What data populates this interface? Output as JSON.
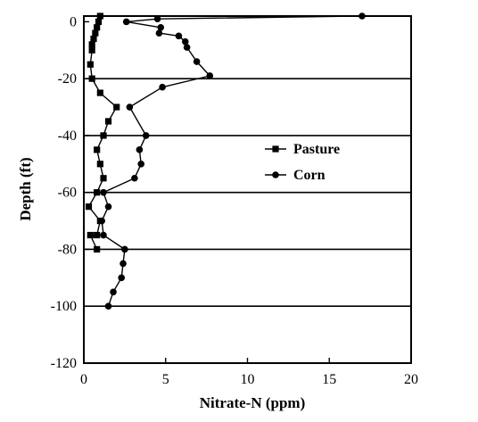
{
  "chart_data": {
    "type": "line",
    "xlabel": "Nitrate-N (ppm)",
    "ylabel": "Depth (ft)",
    "xlim": [
      0,
      20
    ],
    "ylim": [
      -120,
      2
    ],
    "x_ticks": [
      0,
      5,
      10,
      15,
      20
    ],
    "y_ticks": [
      0,
      -20,
      -40,
      -60,
      -80,
      -100,
      -120
    ],
    "grid_lines_y": [
      -20,
      -40,
      -60,
      -80,
      -100
    ],
    "legend_placement": "center-right",
    "series": [
      {
        "name": "Pasture",
        "marker": "square",
        "points": [
          [
            1.0,
            2
          ],
          [
            0.9,
            0
          ],
          [
            0.8,
            -2
          ],
          [
            0.7,
            -4
          ],
          [
            0.6,
            -6
          ],
          [
            0.5,
            -8
          ],
          [
            0.5,
            -10
          ],
          [
            0.4,
            -15
          ],
          [
            0.5,
            -20
          ],
          [
            1.0,
            -25
          ],
          [
            2.0,
            -30
          ],
          [
            1.5,
            -35
          ],
          [
            1.2,
            -40
          ],
          [
            0.8,
            -45
          ],
          [
            1.0,
            -50
          ],
          [
            1.2,
            -55
          ],
          [
            0.8,
            -60
          ],
          [
            0.3,
            -65
          ],
          [
            1.0,
            -70
          ],
          [
            0.8,
            -75
          ],
          [
            0.4,
            -75
          ],
          [
            0.8,
            -80
          ]
        ]
      },
      {
        "name": "Corn",
        "marker": "circle",
        "points": [
          [
            17.0,
            2
          ],
          [
            4.5,
            1
          ],
          [
            2.6,
            0
          ],
          [
            4.7,
            -2
          ],
          [
            4.6,
            -4
          ],
          [
            5.8,
            -5
          ],
          [
            6.2,
            -7
          ],
          [
            6.3,
            -9
          ],
          [
            6.9,
            -14
          ],
          [
            7.7,
            -19
          ],
          [
            4.8,
            -23
          ],
          [
            2.8,
            -30
          ],
          [
            3.8,
            -40
          ],
          [
            3.4,
            -45
          ],
          [
            3.5,
            -50
          ],
          [
            3.1,
            -55
          ],
          [
            1.2,
            -60
          ],
          [
            1.5,
            -65
          ],
          [
            1.1,
            -70
          ],
          [
            1.2,
            -75
          ],
          [
            2.5,
            -80
          ],
          [
            2.4,
            -85
          ],
          [
            2.3,
            -90
          ],
          [
            1.8,
            -95
          ],
          [
            1.5,
            -100
          ]
        ]
      }
    ]
  }
}
